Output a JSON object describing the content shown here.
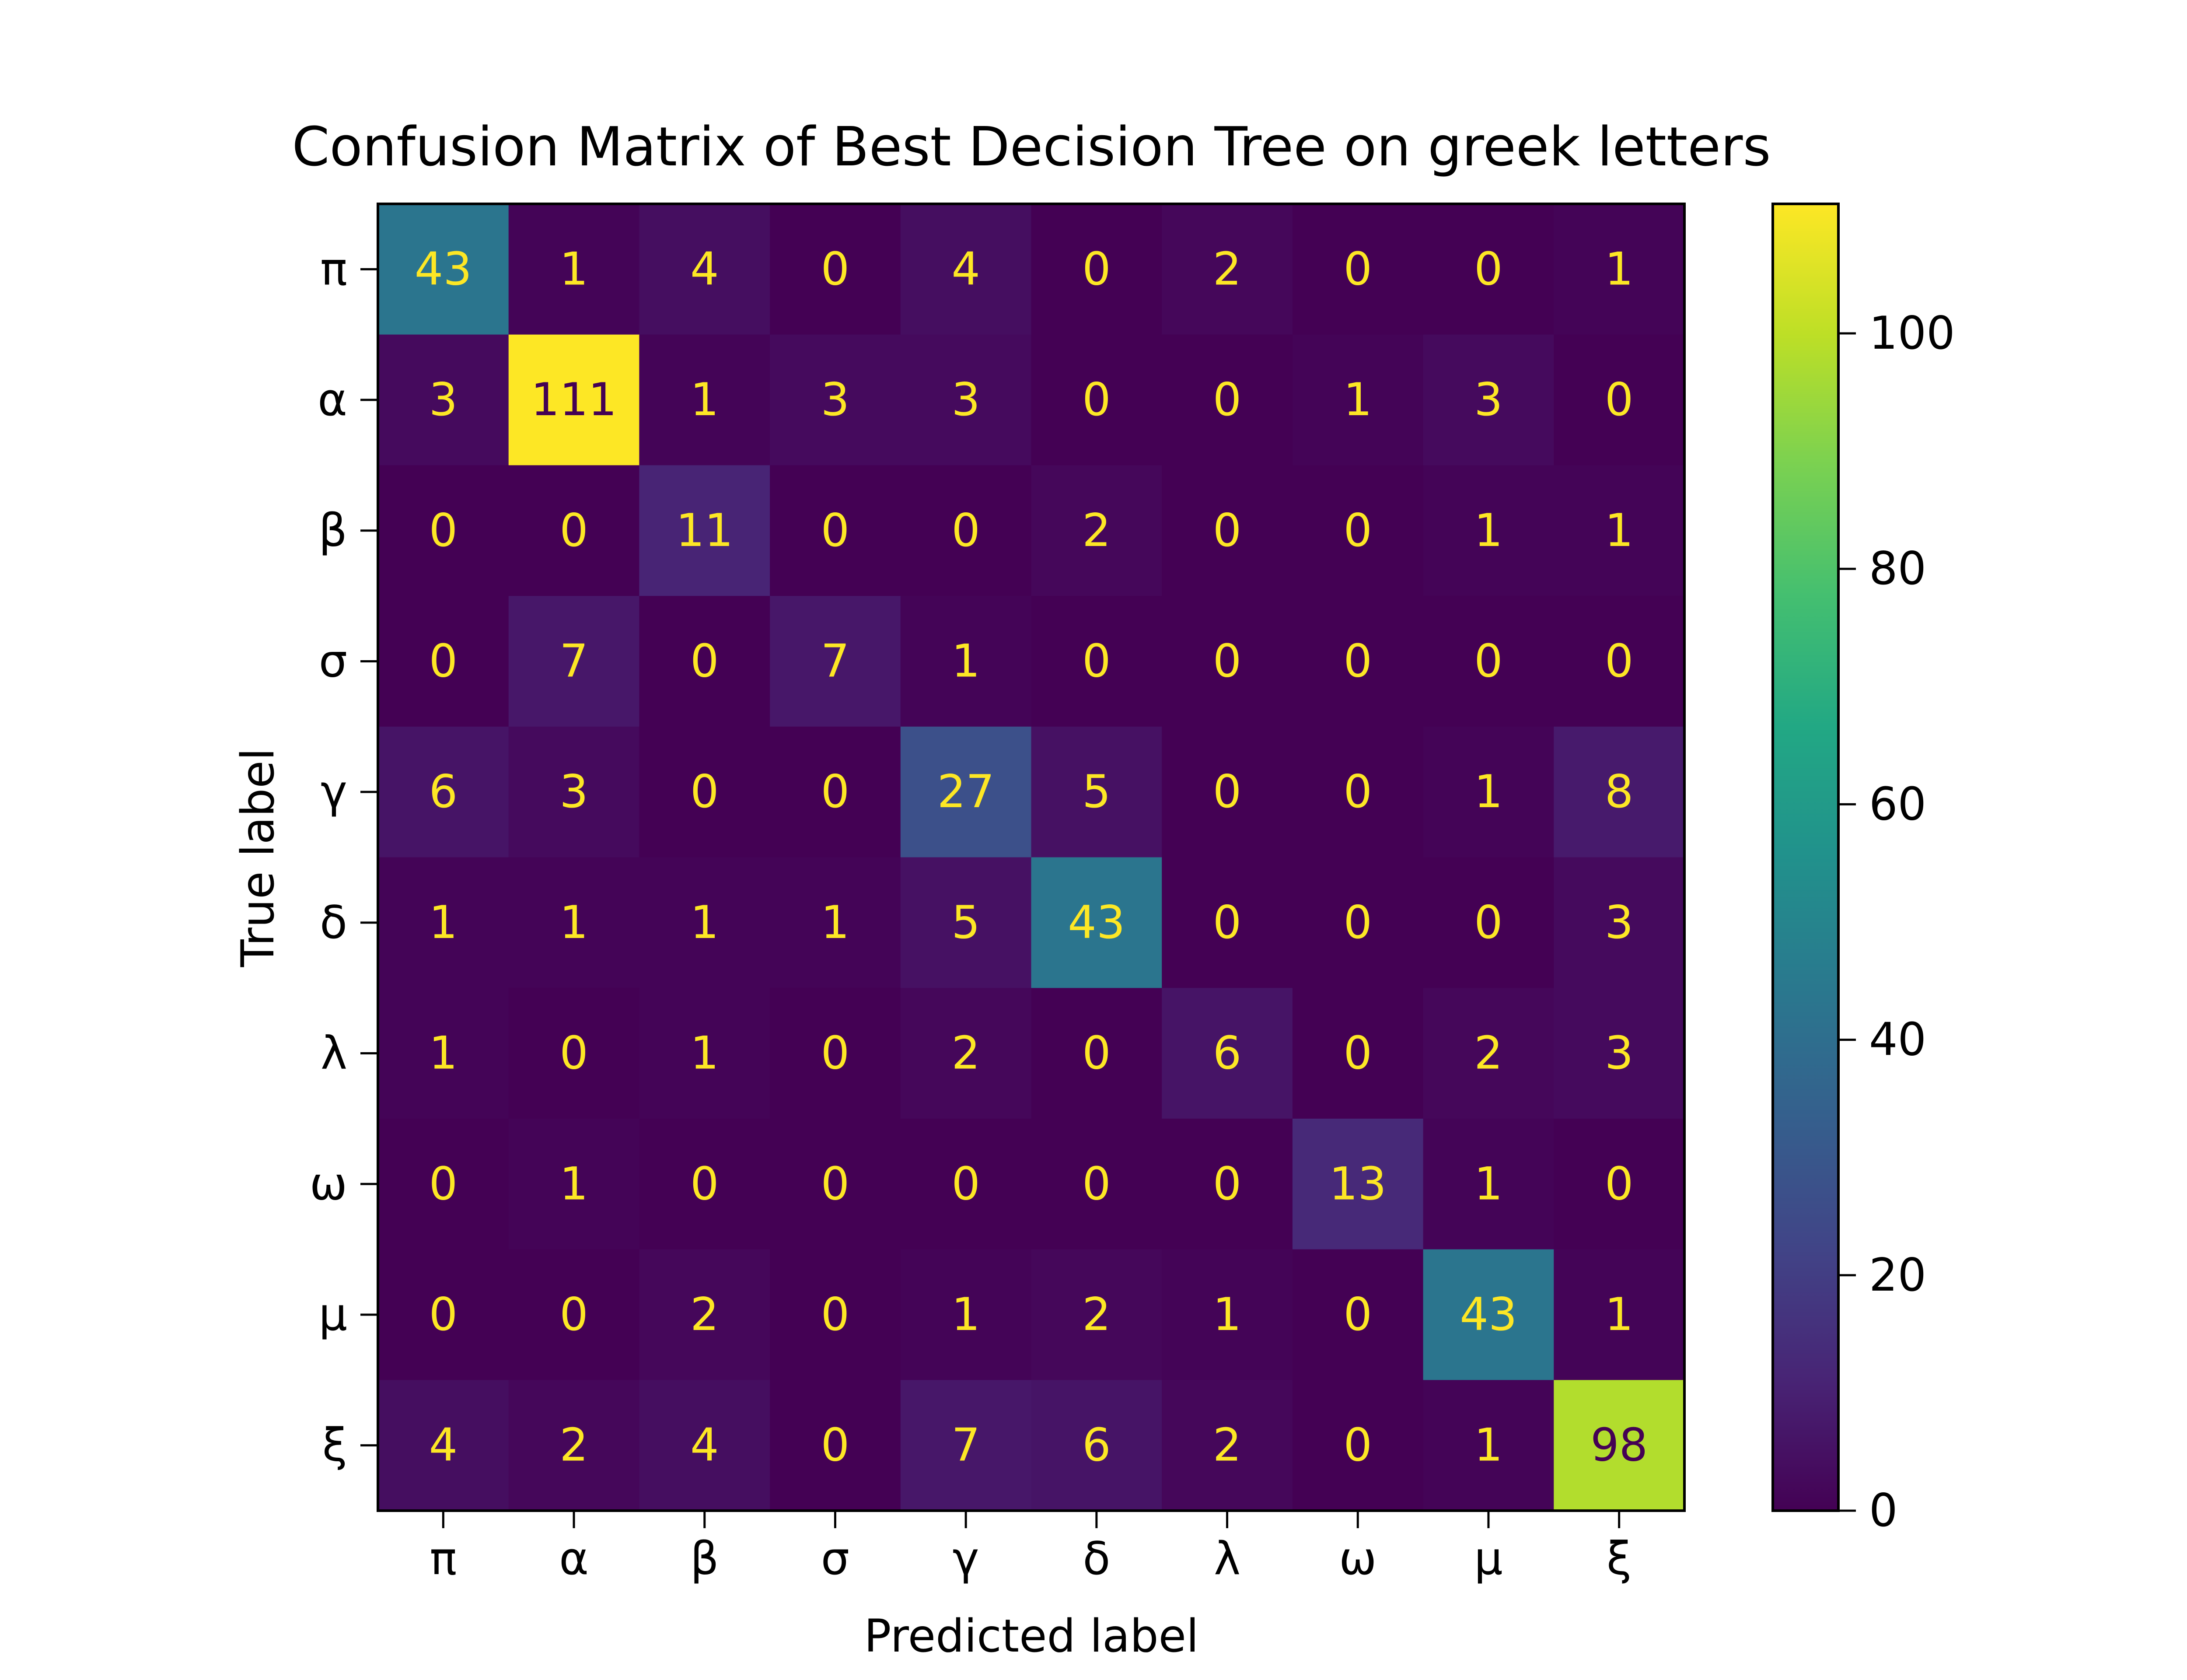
{
  "chart_data": {
    "type": "heatmap",
    "title": "Confusion Matrix of Best Decision Tree on greek letters",
    "xlabel": "Predicted label",
    "ylabel": "True label",
    "x_categories": [
      "π",
      "α",
      "β",
      "σ",
      "γ",
      "δ",
      "λ",
      "ω",
      "μ",
      "ξ"
    ],
    "y_categories": [
      "π",
      "α",
      "β",
      "σ",
      "γ",
      "δ",
      "λ",
      "ω",
      "μ",
      "ξ"
    ],
    "values": [
      [
        43,
        1,
        4,
        0,
        4,
        0,
        2,
        0,
        0,
        1
      ],
      [
        3,
        111,
        1,
        3,
        3,
        0,
        0,
        1,
        3,
        0
      ],
      [
        0,
        0,
        11,
        0,
        0,
        2,
        0,
        0,
        1,
        1
      ],
      [
        0,
        7,
        0,
        7,
        1,
        0,
        0,
        0,
        0,
        0
      ],
      [
        6,
        3,
        0,
        0,
        27,
        5,
        0,
        0,
        1,
        8
      ],
      [
        1,
        1,
        1,
        1,
        5,
        43,
        0,
        0,
        0,
        3
      ],
      [
        1,
        0,
        1,
        0,
        2,
        0,
        6,
        0,
        2,
        3
      ],
      [
        0,
        1,
        0,
        0,
        0,
        0,
        0,
        13,
        1,
        0
      ],
      [
        0,
        0,
        2,
        0,
        1,
        2,
        1,
        0,
        43,
        1
      ],
      [
        4,
        2,
        4,
        0,
        7,
        6,
        2,
        0,
        1,
        98
      ]
    ],
    "colormap": "viridis",
    "colorbar": {
      "min": 0,
      "max": 111,
      "ticks": [
        0,
        20,
        40,
        60,
        80,
        100
      ]
    },
    "text_color_light": "#fde725",
    "text_color_dark": "#440154",
    "grid": false,
    "legend": "colorbar-right"
  }
}
